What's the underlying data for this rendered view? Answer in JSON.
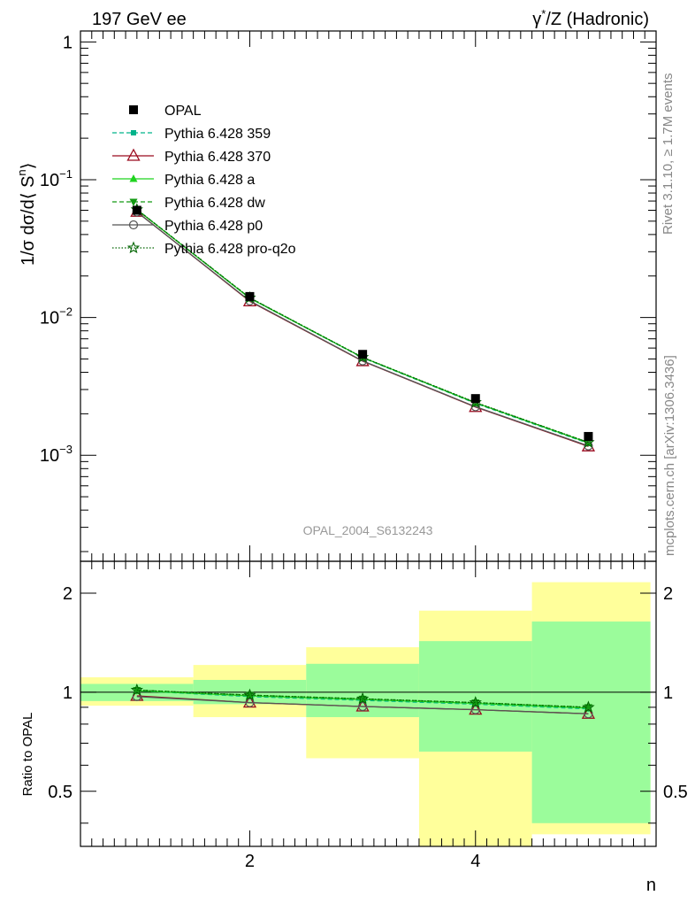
{
  "header": {
    "left_title": "197 GeV ee",
    "right_title_gamma": "γ",
    "right_title_star": "*",
    "right_title_rest": "/Z (Hadronic)"
  },
  "side_text": {
    "rivet": "Rivet 3.1.10, ≥ 1.7M events",
    "mcplots": "mcplots.cern.ch [arXiv:1306.3436]"
  },
  "watermark": "OPAL_2004_S6132243",
  "colors": {
    "opal": "#000000",
    "p359": "#00b38a",
    "p370": "#9b0a1e",
    "pa": "#1fd31f",
    "pdw": "#139a13",
    "pp0": "#555555",
    "pq2o": "#006400",
    "band_inner": "#9bfc9b",
    "band_outer": "#ffff9b"
  },
  "chart_data": [
    {
      "type": "line",
      "ylabel_main": "1/σ dσ/d⟨ S",
      "ylabel_sup": "n",
      "ylabel_end": "⟩",
      "yscale": "log",
      "ylim": [
        0.00017,
        1.2
      ],
      "xlim": [
        0.5,
        5.6
      ],
      "yticks": [
        {
          "v": 1,
          "m": "1",
          "e": ""
        },
        {
          "v": 0.1,
          "m": "10",
          "e": "−1"
        },
        {
          "v": 0.01,
          "m": "10",
          "e": "−2"
        },
        {
          "v": 0.001,
          "m": "10",
          "e": "−3"
        }
      ],
      "legend_position": "top-left",
      "x": [
        1,
        2,
        3,
        4,
        5
      ],
      "series": [
        {
          "name": "OPAL",
          "key": "opal",
          "values": [
            0.06,
            0.0142,
            0.0054,
            0.00258,
            0.00137
          ]
        },
        {
          "name": "Pythia 6.428 359",
          "key": "p359",
          "values": [
            0.0608,
            0.0138,
            0.0051,
            0.00238,
            0.00122
          ]
        },
        {
          "name": "Pythia 6.428 370",
          "key": "p370",
          "values": [
            0.0585,
            0.0131,
            0.00482,
            0.00224,
            0.00116
          ]
        },
        {
          "name": "Pythia 6.428 a",
          "key": "pa",
          "values": [
            0.0606,
            0.0138,
            0.00512,
            0.0024,
            0.00123
          ]
        },
        {
          "name": "Pythia 6.428 dw",
          "key": "pdw",
          "values": [
            0.0607,
            0.0139,
            0.00513,
            0.00241,
            0.00124
          ]
        },
        {
          "name": "Pythia 6.428 p0",
          "key": "pp0",
          "values": [
            0.0583,
            0.0132,
            0.00484,
            0.00225,
            0.00117
          ]
        },
        {
          "name": "Pythia 6.428 pro-q2o",
          "key": "pq2o",
          "values": [
            0.0607,
            0.0139,
            0.00514,
            0.00242,
            0.00124
          ]
        }
      ]
    },
    {
      "type": "line",
      "ylabel": "Ratio to OPAL",
      "xlabel": "n",
      "yscale": "log",
      "ylim": [
        0.34,
        2.5
      ],
      "xlim": [
        0.5,
        5.6
      ],
      "xticks": [
        2,
        4
      ],
      "yticks": [
        0.5,
        1,
        2
      ],
      "x": [
        1,
        2,
        3,
        4,
        5
      ],
      "bins": [
        {
          "lo": 0.5,
          "hi": 1.5,
          "inner": [
            0.94,
            1.06
          ],
          "outer": [
            0.91,
            1.11
          ]
        },
        {
          "lo": 1.5,
          "hi": 2.5,
          "inner": [
            0.92,
            1.09
          ],
          "outer": [
            0.84,
            1.21
          ]
        },
        {
          "lo": 2.5,
          "hi": 3.5,
          "inner": [
            0.84,
            1.22
          ],
          "outer": [
            0.63,
            1.37
          ]
        },
        {
          "lo": 3.5,
          "hi": 4.5,
          "inner": [
            0.66,
            1.43
          ],
          "outer": [
            0.34,
            1.77
          ]
        },
        {
          "lo": 4.5,
          "hi": 5.55,
          "inner": [
            0.4,
            1.64
          ],
          "outer": [
            0.37,
            2.16
          ]
        }
      ],
      "series": [
        {
          "name": "Pythia 6.428 359",
          "key": "p359",
          "values": [
            1.01,
            0.97,
            0.945,
            0.92,
            0.89
          ]
        },
        {
          "name": "Pythia 6.428 370",
          "key": "p370",
          "values": [
            0.975,
            0.93,
            0.905,
            0.885,
            0.86
          ]
        },
        {
          "name": "Pythia 6.428 a",
          "key": "pa",
          "values": [
            1.01,
            0.975,
            0.95,
            0.925,
            0.895
          ]
        },
        {
          "name": "Pythia 6.428 dw",
          "key": "pdw",
          "values": [
            1.015,
            0.98,
            0.955,
            0.93,
            0.9
          ]
        },
        {
          "name": "Pythia 6.428 p0",
          "key": "pp0",
          "values": [
            0.97,
            0.93,
            0.905,
            0.885,
            0.86
          ]
        },
        {
          "name": "Pythia 6.428 pro-q2o",
          "key": "pq2o",
          "values": [
            1.015,
            0.98,
            0.955,
            0.93,
            0.9
          ]
        }
      ]
    }
  ]
}
